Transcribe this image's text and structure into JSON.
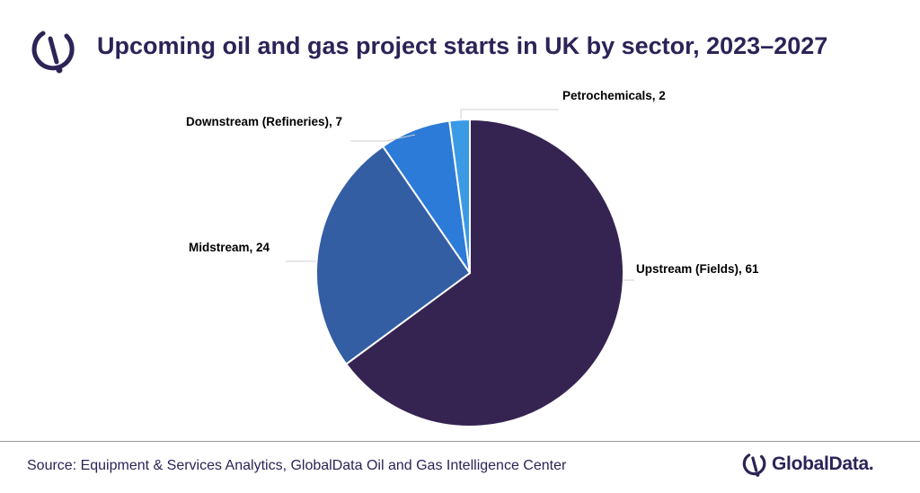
{
  "header": {
    "title": "Upcoming oil and gas project starts in UK by sector, 2023–2027",
    "logo_icon": "globaldata-logo-icon"
  },
  "chart_data": {
    "type": "pie",
    "title": "Upcoming oil and gas project starts in UK by sector, 2023–2027",
    "start_angle_deg": 0,
    "direction": "clockwise",
    "slices": [
      {
        "label": "Upstream (Fields)",
        "value": 61,
        "display": "Upstream (Fields), 61",
        "color": "#352452"
      },
      {
        "label": "Midstream",
        "value": 24,
        "display": "Midstream, 24",
        "color": "#335ea4"
      },
      {
        "label": "Downstream (Refineries)",
        "value": 7,
        "display": "Downstream (Refineries), 7",
        "color": "#2c7bd8"
      },
      {
        "label": "Petrochemicals",
        "value": 2,
        "display": "Petrochemicals, 2",
        "color": "#3a9ae6"
      }
    ]
  },
  "footer": {
    "source": "Source: Equipment & Services Analytics, GlobalData Oil and Gas Intelligence Center",
    "brand": "GlobalData."
  }
}
